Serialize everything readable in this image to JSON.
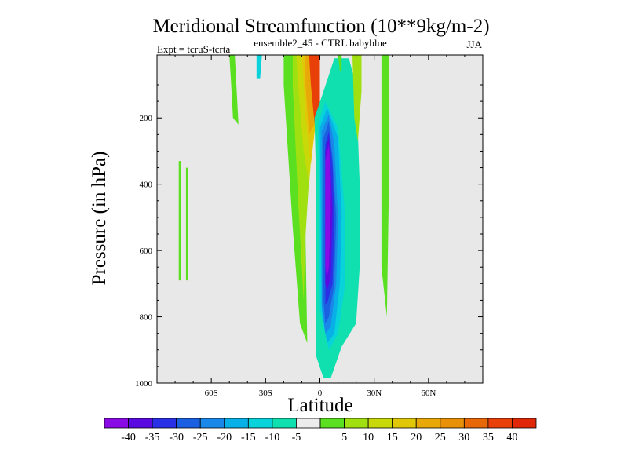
{
  "chart_data": {
    "type": "contour",
    "title": "Meridional Streamfunction (10**9kg/m-2)",
    "subtitle": "ensemble2_45 - CTRL babyblue",
    "left_annotation": "Expt = tcruS-tcrta",
    "right_annotation": "JJA",
    "xlabel": "Latitude",
    "ylabel": "Pressure (in hPa)",
    "xlim": [
      -90,
      90
    ],
    "ylim": [
      1000,
      10
    ],
    "y_reversed": true,
    "x_ticks": [
      {
        "value": -60,
        "label": "60S"
      },
      {
        "value": -30,
        "label": "30S"
      },
      {
        "value": 0,
        "label": "0"
      },
      {
        "value": 30,
        "label": "30N"
      },
      {
        "value": 60,
        "label": "60N"
      }
    ],
    "y_ticks": [
      {
        "value": 200,
        "label": "200"
      },
      {
        "value": 400,
        "label": "400"
      },
      {
        "value": 600,
        "label": "600"
      },
      {
        "value": 800,
        "label": "800"
      },
      {
        "value": 1000,
        "label": "1000"
      }
    ],
    "background_color": "#e8e8e8",
    "levels": [
      {
        "color": "#8a0ae6"
      },
      {
        "color": "#5a0ae0"
      },
      {
        "color": "#2a30e6"
      },
      {
        "color": "#1a60e0"
      },
      {
        "color": "#1a88e8"
      },
      {
        "color": "#08b0e8"
      },
      {
        "color": "#08d2da"
      },
      {
        "color": "#10e0b0"
      },
      {
        "color": "#ececec"
      },
      {
        "color": "#5ae020"
      },
      {
        "color": "#a0e010"
      },
      {
        "color": "#c8d808"
      },
      {
        "color": "#e0c808"
      },
      {
        "color": "#e8a808"
      },
      {
        "color": "#e89008"
      },
      {
        "color": "#e86808"
      },
      {
        "color": "#e84008"
      },
      {
        "color": "#e02808"
      }
    ],
    "colorbar_labels": [
      "-40",
      "-35",
      "-30",
      "-25",
      "-20",
      "-15",
      "-10",
      "-5",
      "5",
      "10",
      "15",
      "20",
      "25",
      "30",
      "35",
      "40"
    ],
    "regions": [
      {
        "level": 9,
        "points": [
          [
            -78,
            330
          ],
          [
            -77,
            330
          ],
          [
            -77,
            690
          ],
          [
            -78,
            690
          ]
        ]
      },
      {
        "level": 9,
        "points": [
          [
            -74,
            350
          ],
          [
            -73,
            350
          ],
          [
            -73,
            690
          ],
          [
            -74,
            690
          ]
        ]
      },
      {
        "level": 9,
        "points": [
          [
            -50,
            10
          ],
          [
            -47,
            10
          ],
          [
            -45,
            220
          ],
          [
            -48,
            200
          ],
          [
            -49,
            100
          ]
        ]
      },
      {
        "level": 6,
        "points": [
          [
            -35,
            10
          ],
          [
            -32,
            10
          ],
          [
            -33,
            80
          ],
          [
            -35,
            80
          ]
        ]
      },
      {
        "level": 9,
        "points": [
          [
            -20,
            10
          ],
          [
            -8,
            10
          ],
          [
            -4,
            200
          ],
          [
            -8,
            550
          ],
          [
            -7,
            880
          ],
          [
            -11,
            820
          ],
          [
            -15,
            530
          ],
          [
            -20,
            100
          ]
        ]
      },
      {
        "level": 10,
        "points": [
          [
            -15,
            10
          ],
          [
            -7,
            10
          ],
          [
            -4,
            200
          ],
          [
            -8,
            560
          ],
          [
            -9,
            750
          ],
          [
            -12,
            450
          ],
          [
            -15,
            100
          ]
        ]
      },
      {
        "level": 11,
        "points": [
          [
            -13,
            10
          ],
          [
            -6,
            10
          ],
          [
            -3,
            200
          ],
          [
            -6,
            400
          ],
          [
            -9,
            300
          ],
          [
            -12,
            100
          ]
        ]
      },
      {
        "level": 12,
        "points": [
          [
            -10,
            10
          ],
          [
            -5,
            10
          ],
          [
            -2,
            200
          ],
          [
            -5,
            340
          ],
          [
            -8,
            200
          ],
          [
            -9,
            100
          ]
        ]
      },
      {
        "level": 13,
        "points": [
          [
            -8,
            10
          ],
          [
            -4,
            10
          ],
          [
            -2,
            210
          ],
          [
            -6,
            250
          ],
          [
            -8,
            100
          ]
        ]
      },
      {
        "level": 16,
        "points": [
          [
            -6,
            10
          ],
          [
            0,
            10
          ],
          [
            0,
            200
          ],
          [
            -3,
            215
          ],
          [
            -5,
            100
          ]
        ]
      },
      {
        "level": 7,
        "points": [
          [
            -3,
            200
          ],
          [
            2,
            120
          ],
          [
            8,
            20
          ],
          [
            16,
            20
          ],
          [
            20,
            100
          ],
          [
            22,
            400
          ],
          [
            22,
            650
          ],
          [
            20,
            820
          ],
          [
            12,
            890
          ],
          [
            6,
            985
          ],
          [
            2,
            985
          ],
          [
            -2,
            920
          ],
          [
            -2,
            400
          ]
        ]
      },
      {
        "level": 6,
        "points": [
          [
            -1,
            220
          ],
          [
            3,
            150
          ],
          [
            10,
            230
          ],
          [
            14,
            500
          ],
          [
            14,
            700
          ],
          [
            10,
            850
          ],
          [
            5,
            900
          ],
          [
            0,
            780
          ]
        ]
      },
      {
        "level": 5,
        "points": [
          [
            0,
            230
          ],
          [
            4,
            170
          ],
          [
            10,
            260
          ],
          [
            12,
            500
          ],
          [
            11,
            700
          ],
          [
            8,
            850
          ],
          [
            4,
            880
          ],
          [
            1,
            780
          ]
        ]
      },
      {
        "level": 4,
        "points": [
          [
            1,
            240
          ],
          [
            5,
            190
          ],
          [
            8,
            280
          ],
          [
            10,
            500
          ],
          [
            9,
            700
          ],
          [
            6,
            830
          ],
          [
            3,
            850
          ],
          [
            1,
            760
          ]
        ]
      },
      {
        "level": 3,
        "points": [
          [
            2,
            260
          ],
          [
            5,
            210
          ],
          [
            7,
            320
          ],
          [
            9,
            500
          ],
          [
            8,
            700
          ],
          [
            5,
            800
          ],
          [
            3,
            820
          ],
          [
            2,
            750
          ]
        ]
      },
      {
        "level": 2,
        "points": [
          [
            3,
            280
          ],
          [
            5,
            240
          ],
          [
            7,
            340
          ],
          [
            8,
            500
          ],
          [
            7,
            700
          ],
          [
            4,
            760
          ],
          [
            3,
            760
          ],
          [
            3,
            700
          ]
        ]
      },
      {
        "level": 1,
        "points": [
          [
            3,
            300
          ],
          [
            5,
            260
          ],
          [
            6,
            360
          ],
          [
            7,
            480
          ],
          [
            6,
            680
          ],
          [
            4,
            720
          ],
          [
            3,
            700
          ],
          [
            3,
            500
          ]
        ]
      },
      {
        "level": 0,
        "points": [
          [
            3,
            330
          ],
          [
            5,
            280
          ],
          [
            6,
            380
          ],
          [
            6,
            480
          ],
          [
            5,
            650
          ],
          [
            4,
            680
          ],
          [
            3,
            650
          ],
          [
            3,
            500
          ]
        ]
      },
      {
        "level": 9,
        "points": [
          [
            10,
            10
          ],
          [
            12,
            10
          ],
          [
            12,
            60
          ],
          [
            11,
            60
          ]
        ]
      },
      {
        "level": 10,
        "points": [
          [
            18,
            10
          ],
          [
            23,
            10
          ],
          [
            23,
            120
          ],
          [
            21,
            270
          ],
          [
            19,
            200
          ]
        ]
      },
      {
        "level": 9,
        "points": [
          [
            34,
            10
          ],
          [
            38,
            10
          ],
          [
            38,
            450
          ],
          [
            37,
            800
          ],
          [
            34,
            650
          ]
        ]
      }
    ]
  }
}
